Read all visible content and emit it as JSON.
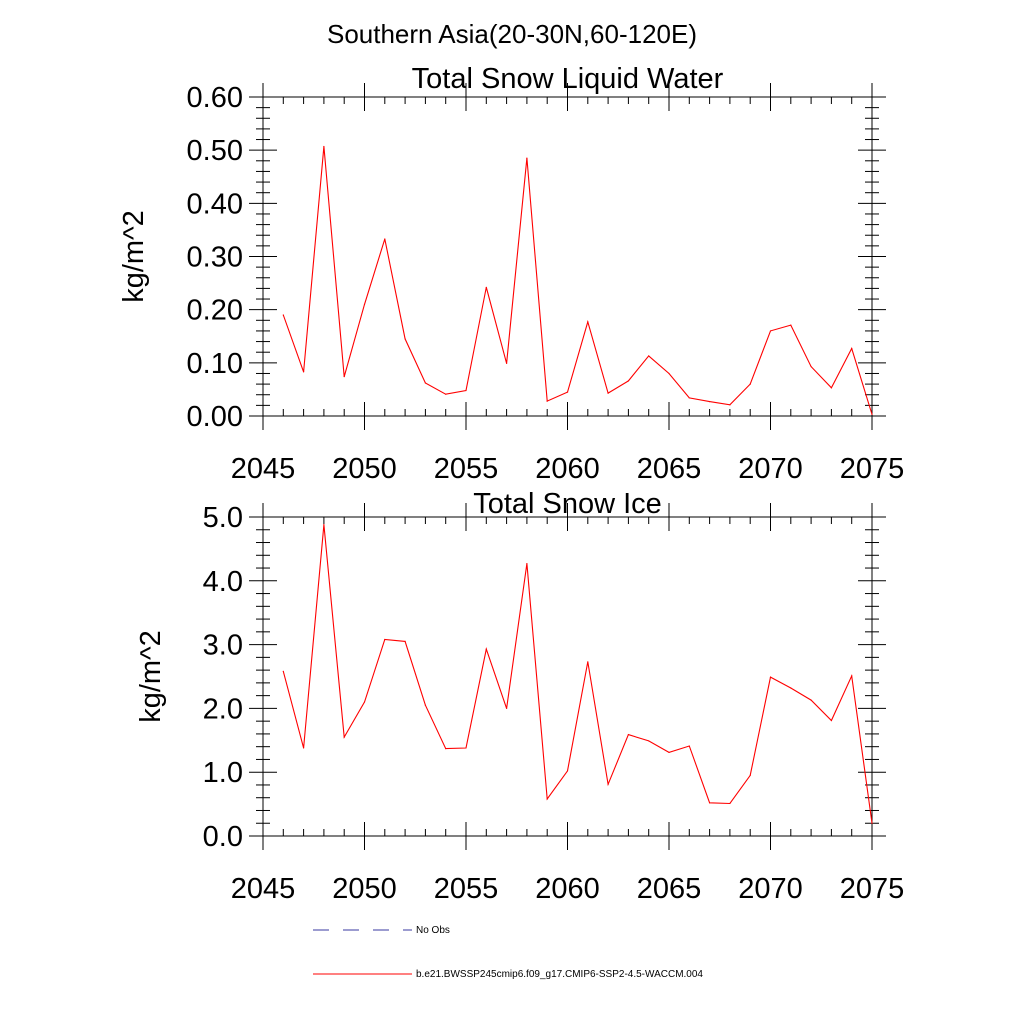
{
  "figure": {
    "suptitle": "Southern Asia(20-30N,60-120E)"
  },
  "legend": {
    "obs_label": "No Obs",
    "obs_color": "#3a3aa0",
    "model_label": "b.e21.BWSSP245cmip6.f09_g17.CMIP6-SSP2-4.5-WACCM.004",
    "model_color": "#ff0000"
  },
  "chart_data": [
    {
      "type": "line",
      "title": "Total Snow Liquid Water",
      "ylabel": "kg/m^2",
      "xlabel": "",
      "xlim": [
        2045,
        2075
      ],
      "ylim": [
        0,
        0.6
      ],
      "xticks": [
        2045,
        2050,
        2055,
        2060,
        2065,
        2070,
        2075
      ],
      "xtick_labels": [
        "2045",
        "2050",
        "2055",
        "2060",
        "2065",
        "2070",
        "2075"
      ],
      "yticks": [
        0,
        0.1,
        0.2,
        0.3,
        0.4,
        0.5,
        0.6
      ],
      "ytick_labels": [
        "0.00",
        "0.10",
        "0.20",
        "0.30",
        "0.40",
        "0.50",
        "0.60"
      ],
      "grid": false,
      "series": [
        {
          "color": "#ff0000",
          "x": [
            2046,
            2047,
            2048,
            2049,
            2050,
            2051,
            2052,
            2053,
            2054,
            2055,
            2056,
            2057,
            2058,
            2059,
            2060,
            2061,
            2062,
            2063,
            2064,
            2065,
            2066,
            2067,
            2068,
            2069,
            2070,
            2071,
            2072,
            2073,
            2074,
            2075
          ],
          "values": [
            0.19,
            0.083,
            0.507,
            0.074,
            0.21,
            0.333,
            0.145,
            0.062,
            0.041,
            0.048,
            0.242,
            0.099,
            0.485,
            0.028,
            0.045,
            0.177,
            0.043,
            0.066,
            0.113,
            0.08,
            0.034,
            0.027,
            0.021,
            0.06,
            0.16,
            0.171,
            0.093,
            0.053,
            0.127,
            0.003
          ]
        }
      ]
    },
    {
      "type": "line",
      "title": "Total Snow Ice",
      "ylabel": "kg/m^2",
      "xlabel": "",
      "xlim": [
        2045,
        2075
      ],
      "ylim": [
        0,
        5.0
      ],
      "xticks": [
        2045,
        2050,
        2055,
        2060,
        2065,
        2070,
        2075
      ],
      "xtick_labels": [
        "2045",
        "2050",
        "2055",
        "2060",
        "2065",
        "2070",
        "2075"
      ],
      "yticks": [
        0,
        1,
        2,
        3,
        4,
        5
      ],
      "ytick_labels": [
        "0.0",
        "1.0",
        "2.0",
        "3.0",
        "4.0",
        "5.0"
      ],
      "grid": false,
      "series": [
        {
          "color": "#ff0000",
          "x": [
            2046,
            2047,
            2048,
            2049,
            2050,
            2051,
            2052,
            2053,
            2054,
            2055,
            2056,
            2057,
            2058,
            2059,
            2060,
            2061,
            2062,
            2063,
            2064,
            2065,
            2066,
            2067,
            2068,
            2069,
            2070,
            2071,
            2072,
            2073,
            2074,
            2075
          ],
          "values": [
            2.58,
            1.38,
            4.88,
            1.55,
            2.1,
            3.08,
            3.05,
            2.05,
            1.37,
            1.38,
            2.93,
            2.0,
            4.27,
            0.58,
            1.02,
            2.73,
            0.81,
            1.59,
            1.49,
            1.31,
            1.41,
            0.52,
            0.51,
            0.95,
            2.49,
            2.32,
            2.13,
            1.81,
            2.51,
            0.2
          ]
        }
      ]
    }
  ]
}
